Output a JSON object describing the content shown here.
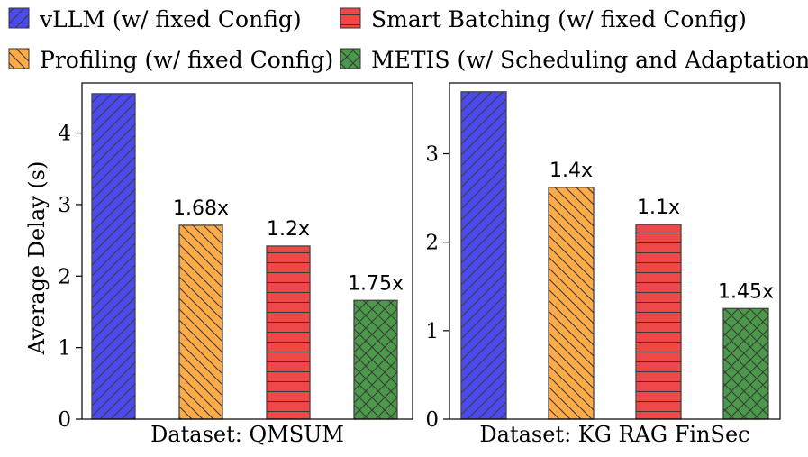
{
  "legend": [
    {
      "label": "vLLM (w/ fixed Config)",
      "color": "#4a4af0",
      "hatch": "diag-forward"
    },
    {
      "label": "Smart Batching (w/ fixed Config)",
      "color": "#f04848",
      "hatch": "horizontal"
    },
    {
      "label": "Profiling (w/ fixed Config)",
      "color": "#ffab47",
      "hatch": "diag-back"
    },
    {
      "label": "METIS (w/ Scheduling and Adaptation)",
      "color": "#4a9a4a",
      "hatch": "cross"
    }
  ],
  "chart_data": [
    {
      "type": "bar",
      "xlabel": "Dataset: QMSUM",
      "ylabel": "Average Delay (s)",
      "ylim": [
        0,
        4.7
      ],
      "yticks": [
        0,
        1,
        2,
        3,
        4
      ],
      "series": [
        {
          "name": "vLLM (w/ fixed Config)",
          "value": 4.55,
          "annotation": ""
        },
        {
          "name": "Profiling (w/ fixed Config)",
          "value": 2.71,
          "annotation": "1.68x"
        },
        {
          "name": "Smart Batching (w/ fixed Config)",
          "value": 2.42,
          "annotation": "1.2x"
        },
        {
          "name": "METIS (w/ Scheduling and Adaptation)",
          "value": 1.66,
          "annotation": "1.75x"
        }
      ]
    },
    {
      "type": "bar",
      "xlabel": "Dataset: KG RAG FinSec",
      "ylabel": "",
      "ylim": [
        0,
        3.8
      ],
      "yticks": [
        0,
        1,
        2,
        3
      ],
      "series": [
        {
          "name": "vLLM (w/ fixed Config)",
          "value": 3.7,
          "annotation": ""
        },
        {
          "name": "Profiling (w/ fixed Config)",
          "value": 2.62,
          "annotation": "1.4x"
        },
        {
          "name": "Smart Batching (w/ fixed Config)",
          "value": 2.2,
          "annotation": "1.1x"
        },
        {
          "name": "METIS (w/ Scheduling and Adaptation)",
          "value": 1.25,
          "annotation": "1.45x"
        }
      ]
    }
  ]
}
